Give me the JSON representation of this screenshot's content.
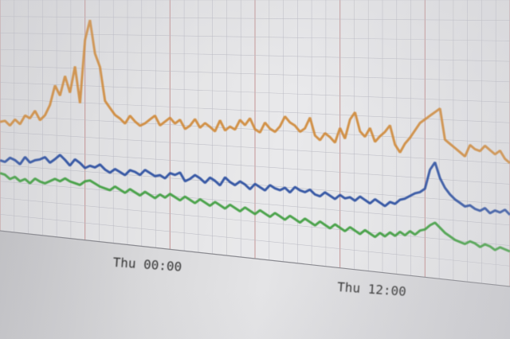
{
  "chart_data": {
    "type": "line",
    "x_tick_labels": [
      "Thu 00:00",
      "Thu 12:00"
    ],
    "grid": true,
    "series": [
      {
        "color": "#d08a3a",
        "values": [
          170,
          172,
          165,
          175,
          168,
          182,
          178,
          190,
          176,
          184,
          200,
          230,
          215,
          245,
          220,
          260,
          205,
          300,
          330,
          280,
          260,
          210,
          200,
          190,
          185,
          178,
          190,
          182,
          176,
          180,
          186,
          192,
          178,
          184,
          190,
          182,
          188,
          175,
          180,
          190,
          178,
          185,
          180,
          174,
          190,
          176,
          182,
          178,
          192,
          185,
          195,
          180,
          176,
          190,
          182,
          178,
          186,
          200,
          192,
          188,
          180,
          185,
          200,
          176,
          170,
          180,
          175,
          168,
          188,
          174,
          200,
          210,
          185,
          178,
          190,
          172,
          180,
          186,
          195,
          170,
          160,
          172,
          180,
          190,
          200,
          205,
          210,
          215,
          220,
          180,
          175,
          170,
          165,
          160,
          175,
          170,
          168,
          175,
          170,
          165,
          170,
          160,
          155
        ]
      },
      {
        "color": "#2a4ea0",
        "values": [
          110,
          108,
          115,
          112,
          106,
          118,
          110,
          114,
          116,
          120,
          112,
          118,
          125,
          118,
          110,
          120,
          115,
          108,
          112,
          110,
          115,
          108,
          104,
          110,
          106,
          102,
          110,
          108,
          104,
          112,
          108,
          104,
          106,
          102,
          110,
          108,
          112,
          100,
          104,
          110,
          106,
          100,
          108,
          104,
          98,
          110,
          104,
          100,
          106,
          102,
          96,
          104,
          100,
          96,
          104,
          100,
          98,
          102,
          96,
          104,
          100,
          98,
          102,
          96,
          94,
          100,
          96,
          92,
          98,
          94,
          96,
          92,
          98,
          94,
          90,
          96,
          92,
          88,
          94,
          92,
          98,
          100,
          104,
          108,
          110,
          115,
          140,
          150,
          130,
          118,
          110,
          104,
          100,
          96,
          98,
          94,
          92,
          96,
          90,
          94,
          92,
          96,
          90
        ]
      },
      {
        "color": "#3f9e3f",
        "values": [
          90,
          88,
          82,
          86,
          80,
          84,
          78,
          86,
          82,
          80,
          84,
          88,
          85,
          90,
          86,
          84,
          82,
          88,
          90,
          86,
          82,
          80,
          78,
          84,
          80,
          76,
          82,
          78,
          74,
          80,
          76,
          72,
          78,
          74,
          80,
          76,
          72,
          78,
          74,
          70,
          76,
          72,
          68,
          74,
          70,
          66,
          72,
          68,
          64,
          70,
          66,
          62,
          68,
          64,
          60,
          66,
          62,
          58,
          64,
          60,
          56,
          62,
          58,
          54,
          60,
          56,
          52,
          58,
          54,
          50,
          56,
          52,
          48,
          54,
          50,
          46,
          52,
          48,
          54,
          50,
          56,
          52,
          58,
          54,
          60,
          62,
          68,
          72,
          66,
          60,
          56,
          52,
          50,
          48,
          52,
          50,
          46,
          50,
          48,
          44,
          48,
          46,
          44
        ]
      }
    ]
  }
}
